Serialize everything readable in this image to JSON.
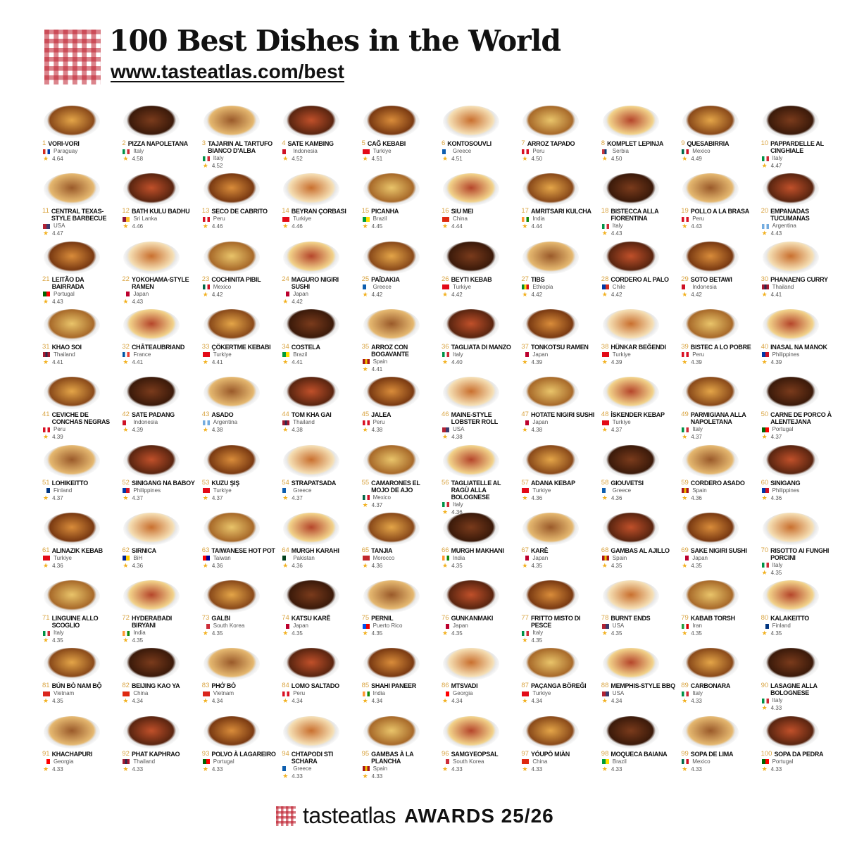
{
  "header": {
    "title": "100 Best Dishes in the World",
    "url": "www.tasteatlas.com/best"
  },
  "footer": {
    "brand": "tasteatlas",
    "awards": "AWARDS 25/26"
  },
  "flag_colors": {
    "Paraguay": [
      "#d52b1e",
      "#fff",
      "#0038a8"
    ],
    "Italy": [
      "#009246",
      "#fff",
      "#ce2b37"
    ],
    "Indonesia": [
      "#ce1126",
      "#fff"
    ],
    "Turkiye": [
      "#e30a17"
    ],
    "Greece": [
      "#0d5eaf",
      "#fff"
    ],
    "Peru": [
      "#d91023",
      "#fff",
      "#d91023"
    ],
    "Serbia": [
      "#c6363c",
      "#0c4076",
      "#fff"
    ],
    "Mexico": [
      "#006847",
      "#fff",
      "#ce1126"
    ],
    "USA": [
      "#b22234",
      "#3c3b6e"
    ],
    "Sri Lanka": [
      "#8d153a",
      "#ffbe29"
    ],
    "Brazil": [
      "#009c3b",
      "#ffdf00"
    ],
    "China": [
      "#de2910"
    ],
    "India": [
      "#ff9933",
      "#fff",
      "#138808"
    ],
    "Argentina": [
      "#74acdf",
      "#fff",
      "#74acdf"
    ],
    "Portugal": [
      "#006600",
      "#ff0000"
    ],
    "Japan": [
      "#fff",
      "#bc002d"
    ],
    "Ethiopia": [
      "#078930",
      "#fcdd09",
      "#da121a"
    ],
    "Chile": [
      "#0039a6",
      "#d52b1e"
    ],
    "Thailand": [
      "#a51931",
      "#2d2a4a",
      "#a51931"
    ],
    "France": [
      "#0055a4",
      "#fff",
      "#ef4135"
    ],
    "Spain": [
      "#aa151b",
      "#f1bf00",
      "#aa151b"
    ],
    "Philippines": [
      "#0038a8",
      "#ce1126"
    ],
    "Finland": [
      "#fff",
      "#003580"
    ],
    "BiH": [
      "#002395",
      "#fecb00"
    ],
    "Taiwan": [
      "#fe0000",
      "#000095"
    ],
    "Pakistan": [
      "#01411c",
      "#fff"
    ],
    "Morocco": [
      "#c1272d"
    ],
    "South Korea": [
      "#fff",
      "#cd2e3a"
    ],
    "Puerto Rico": [
      "#0050f0",
      "#ed0000"
    ],
    "Iran": [
      "#239f40",
      "#fff",
      "#da0000"
    ],
    "Vietnam": [
      "#da251d"
    ],
    "Georgia": [
      "#fff",
      "#ff0000"
    ]
  },
  "dishes": [
    {
      "rank": "1",
      "name": "Vori-Vori",
      "country": "Paraguay",
      "rating": "4.64"
    },
    {
      "rank": "2",
      "name": "Pizza Napoletana",
      "country": "Italy",
      "rating": "4.58"
    },
    {
      "rank": "3",
      "name": "Tajarin al tartufo bianco d'Alba",
      "country": "Italy",
      "rating": "4.52"
    },
    {
      "rank": "4",
      "name": "Sate Kambing",
      "country": "Indonesia",
      "rating": "4.52"
    },
    {
      "rank": "5",
      "name": "Cağ Kebabi",
      "country": "Turkiye",
      "rating": "4.51"
    },
    {
      "rank": "6",
      "name": "Kontosouvli",
      "country": "Greece",
      "rating": "4.51"
    },
    {
      "rank": "7",
      "name": "Arroz Tapado",
      "country": "Peru",
      "rating": "4.50"
    },
    {
      "rank": "8",
      "name": "Komplet Lepinja",
      "country": "Serbia",
      "rating": "4.50"
    },
    {
      "rank": "9",
      "name": "Quesabirria",
      "country": "Mexico",
      "rating": "4.49"
    },
    {
      "rank": "10",
      "name": "Pappardelle al cinghiale",
      "country": "Italy",
      "rating": "4.47"
    },
    {
      "rank": "11",
      "name": "Central Texas-Style Barbecue",
      "country": "USA",
      "rating": "4.47"
    },
    {
      "rank": "12",
      "name": "Bath Kulu Badhu",
      "country": "Sri Lanka",
      "rating": "4.46"
    },
    {
      "rank": "13",
      "name": "Seco de Cabrito",
      "country": "Peru",
      "rating": "4.46"
    },
    {
      "rank": "14",
      "name": "Beyran Çorbasi",
      "country": "Turkiye",
      "rating": "4.46"
    },
    {
      "rank": "15",
      "name": "Picanha",
      "country": "Brazil",
      "rating": "4.45"
    },
    {
      "rank": "16",
      "name": "Siu Mei",
      "country": "China",
      "rating": "4.44"
    },
    {
      "rank": "17",
      "name": "Amritsari Kulcha",
      "country": "India",
      "rating": "4.44"
    },
    {
      "rank": "18",
      "name": "Bistecca alla Fiorentina",
      "country": "Italy",
      "rating": "4.43"
    },
    {
      "rank": "19",
      "name": "Pollo a la Brasa",
      "country": "Peru",
      "rating": "4.43"
    },
    {
      "rank": "20",
      "name": "Empanadas Tucumanas",
      "country": "Argentina",
      "rating": "4.43"
    },
    {
      "rank": "21",
      "name": "Leitão da Bairrada",
      "country": "Portugal",
      "rating": "4.43"
    },
    {
      "rank": "22",
      "name": "Yokohama-Style Ramen",
      "country": "Japan",
      "rating": "4.43"
    },
    {
      "rank": "23",
      "name": "Cochinita Pibil",
      "country": "Mexico",
      "rating": "4.42"
    },
    {
      "rank": "24",
      "name": "Maguro Nigiri Sushi",
      "country": "Japan",
      "rating": "4.42"
    },
    {
      "rank": "25",
      "name": "Païdakia",
      "country": "Greece",
      "rating": "4.42"
    },
    {
      "rank": "26",
      "name": "Beyti Kebab",
      "country": "Turkiye",
      "rating": "4.42"
    },
    {
      "rank": "27",
      "name": "Tibs",
      "country": "Ethiopia",
      "rating": "4.42"
    },
    {
      "rank": "28",
      "name": "Cordero al Palo",
      "country": "Chile",
      "rating": "4.42"
    },
    {
      "rank": "29",
      "name": "Soto Betawi",
      "country": "Indonesia",
      "rating": "4.42"
    },
    {
      "rank": "30",
      "name": "Phanaeng Curry",
      "country": "Thailand",
      "rating": "4.41"
    },
    {
      "rank": "31",
      "name": "Khao Soi",
      "country": "Thailand",
      "rating": "4.41"
    },
    {
      "rank": "32",
      "name": "Châteaubriand",
      "country": "France",
      "rating": "4.41"
    },
    {
      "rank": "33",
      "name": "Çökertme Kebabi",
      "country": "Turkiye",
      "rating": "4.41"
    },
    {
      "rank": "34",
      "name": "Costela",
      "country": "Brazil",
      "rating": "4.41"
    },
    {
      "rank": "35",
      "name": "Arroz con Bogavante",
      "country": "Spain",
      "rating": "4.41"
    },
    {
      "rank": "36",
      "name": "Tagliata di Manzo",
      "country": "Italy",
      "rating": "4.40"
    },
    {
      "rank": "37",
      "name": "Tonkotsu Ramen",
      "country": "Japan",
      "rating": "4.39"
    },
    {
      "rank": "38",
      "name": "Hünkar Beğendi",
      "country": "Turkiye",
      "rating": "4.39"
    },
    {
      "rank": "39",
      "name": "Bistec a lo Pobre",
      "country": "Peru",
      "rating": "4.39"
    },
    {
      "rank": "40",
      "name": "Inasal na Manok",
      "country": "Philippines",
      "rating": "4.39"
    },
    {
      "rank": "41",
      "name": "Ceviche de Conchas Negras",
      "country": "Peru",
      "rating": "4.39"
    },
    {
      "rank": "42",
      "name": "Sate Padang",
      "country": "Indonesia",
      "rating": "4.39"
    },
    {
      "rank": "43",
      "name": "Asado",
      "country": "Argentina",
      "rating": "4.38"
    },
    {
      "rank": "44",
      "name": "Tom Kha Gai",
      "country": "Thailand",
      "rating": "4.38"
    },
    {
      "rank": "45",
      "name": "Jalea",
      "country": "Peru",
      "rating": "4.38"
    },
    {
      "rank": "46",
      "name": "Maine-Style Lobster Roll",
      "country": "USA",
      "rating": "4.38"
    },
    {
      "rank": "47",
      "name": "Hotate Nigiri Sushi",
      "country": "Japan",
      "rating": "4.38"
    },
    {
      "rank": "48",
      "name": "İskender Kebap",
      "country": "Turkiye",
      "rating": "4.37"
    },
    {
      "rank": "49",
      "name": "Parmigiana alla Napoletana",
      "country": "Italy",
      "rating": "4.37"
    },
    {
      "rank": "50",
      "name": "Carne de Porco à Alentejana",
      "country": "Portugal",
      "rating": "4.37"
    },
    {
      "rank": "51",
      "name": "Lohikeitto",
      "country": "Finland",
      "rating": "4.37"
    },
    {
      "rank": "52",
      "name": "Sinigang na Baboy",
      "country": "Philippines",
      "rating": "4.37"
    },
    {
      "rank": "53",
      "name": "Kuzu Şiş",
      "country": "Turkiye",
      "rating": "4.37"
    },
    {
      "rank": "54",
      "name": "Strapatsada",
      "country": "Greece",
      "rating": "4.37"
    },
    {
      "rank": "55",
      "name": "Camarones el Mojo de Ajo",
      "country": "Mexico",
      "rating": "4.37"
    },
    {
      "rank": "56",
      "name": "Tagliatelle al ragù alla bolognese",
      "country": "Italy",
      "rating": "4.36"
    },
    {
      "rank": "57",
      "name": "Adana Kebap",
      "country": "Turkiye",
      "rating": "4.36"
    },
    {
      "rank": "58",
      "name": "Giouvetsi",
      "country": "Greece",
      "rating": "4.36"
    },
    {
      "rank": "59",
      "name": "Cordero Asado",
      "country": "Spain",
      "rating": "4.36"
    },
    {
      "rank": "60",
      "name": "Sinigang",
      "country": "Philippines",
      "rating": "4.36"
    },
    {
      "rank": "61",
      "name": "Alinazik Kebab",
      "country": "Turkiye",
      "rating": "4.36"
    },
    {
      "rank": "62",
      "name": "Sirnica",
      "country": "BiH",
      "rating": "4.36"
    },
    {
      "rank": "63",
      "name": "Taiwanese Hot Pot",
      "country": "Taiwan",
      "rating": "4.36"
    },
    {
      "rank": "64",
      "name": "Murgh Karahi",
      "country": "Pakistan",
      "rating": "4.36"
    },
    {
      "rank": "65",
      "name": "Tanjia",
      "country": "Morocco",
      "rating": "4.36"
    },
    {
      "rank": "66",
      "name": "Murgh Makhani",
      "country": "India",
      "rating": "4.35"
    },
    {
      "rank": "67",
      "name": "Karē",
      "country": "Japan",
      "rating": "4.35"
    },
    {
      "rank": "68",
      "name": "Gambas al Ajillo",
      "country": "Spain",
      "rating": "4.35"
    },
    {
      "rank": "69",
      "name": "Sake Nigiri Sushi",
      "country": "Japan",
      "rating": "4.35"
    },
    {
      "rank": "70",
      "name": "Risotto ai Funghi Porcini",
      "country": "Italy",
      "rating": "4.35"
    },
    {
      "rank": "71",
      "name": "Linguine allo Scoglio",
      "country": "Italy",
      "rating": "4.35"
    },
    {
      "rank": "72",
      "name": "Hyderabadi Biryani",
      "country": "India",
      "rating": "4.35"
    },
    {
      "rank": "73",
      "name": "Galbi",
      "country": "South Korea",
      "rating": "4.35"
    },
    {
      "rank": "74",
      "name": "Katsu Karē",
      "country": "Japan",
      "rating": "4.35"
    },
    {
      "rank": "75",
      "name": "Pernil",
      "country": "Puerto Rico",
      "rating": "4.35"
    },
    {
      "rank": "76",
      "name": "Gunkanmaki",
      "country": "Japan",
      "rating": "4.35"
    },
    {
      "rank": "77",
      "name": "Fritto Misto di Pesce",
      "country": "Italy",
      "rating": "4.35"
    },
    {
      "rank": "78",
      "name": "Burnt Ends",
      "country": "USA",
      "rating": "4.35"
    },
    {
      "rank": "79",
      "name": "Kabab Torsh",
      "country": "Iran",
      "rating": "4.35"
    },
    {
      "rank": "80",
      "name": "Kalakeitto",
      "country": "Finland",
      "rating": "4.35"
    },
    {
      "rank": "81",
      "name": "Bún Bò Nam Bộ",
      "country": "Vietnam",
      "rating": "4.35"
    },
    {
      "rank": "82",
      "name": "Beijing Kao Ya",
      "country": "China",
      "rating": "4.34"
    },
    {
      "rank": "83",
      "name": "Phở Bò",
      "country": "Vietnam",
      "rating": "4.34"
    },
    {
      "rank": "84",
      "name": "Lomo Saltado",
      "country": "Peru",
      "rating": "4.34"
    },
    {
      "rank": "85",
      "name": "Shahi Paneer",
      "country": "India",
      "rating": "4.34"
    },
    {
      "rank": "86",
      "name": "Mtsvadi",
      "country": "Georgia",
      "rating": "4.34"
    },
    {
      "rank": "87",
      "name": "Paçanga Böreği",
      "country": "Turkiye",
      "rating": "4.34"
    },
    {
      "rank": "88",
      "name": "Memphis-Style BBQ",
      "country": "USA",
      "rating": "4.34"
    },
    {
      "rank": "89",
      "name": "Carbonara",
      "country": "Italy",
      "rating": "4.33"
    },
    {
      "rank": "90",
      "name": "Lasagne alla Bolognese",
      "country": "Italy",
      "rating": "4.33"
    },
    {
      "rank": "91",
      "name": "Khachapuri",
      "country": "Georgia",
      "rating": "4.33"
    },
    {
      "rank": "92",
      "name": "Phat Kaphrao",
      "country": "Thailand",
      "rating": "4.33"
    },
    {
      "rank": "93",
      "name": "Polvo à Lagareiro",
      "country": "Portugal",
      "rating": "4.33"
    },
    {
      "rank": "94",
      "name": "Chtapodi sti Schara",
      "country": "Greece",
      "rating": "4.33"
    },
    {
      "rank": "95",
      "name": "Gambas à la Plancha",
      "country": "Spain",
      "rating": "4.33"
    },
    {
      "rank": "96",
      "name": "Samgyeopsal",
      "country": "South Korea",
      "rating": "4.33"
    },
    {
      "rank": "97",
      "name": "Yóupō Miàn",
      "country": "China",
      "rating": "4.33"
    },
    {
      "rank": "98",
      "name": "Moqueca Baiana",
      "country": "Brazil",
      "rating": "4.33"
    },
    {
      "rank": "99",
      "name": "Sopa de Lima",
      "country": "Mexico",
      "rating": "4.33"
    },
    {
      "rank": "100",
      "name": "Sopa da Pedra",
      "country": "Portugal",
      "rating": "4.33"
    }
  ]
}
